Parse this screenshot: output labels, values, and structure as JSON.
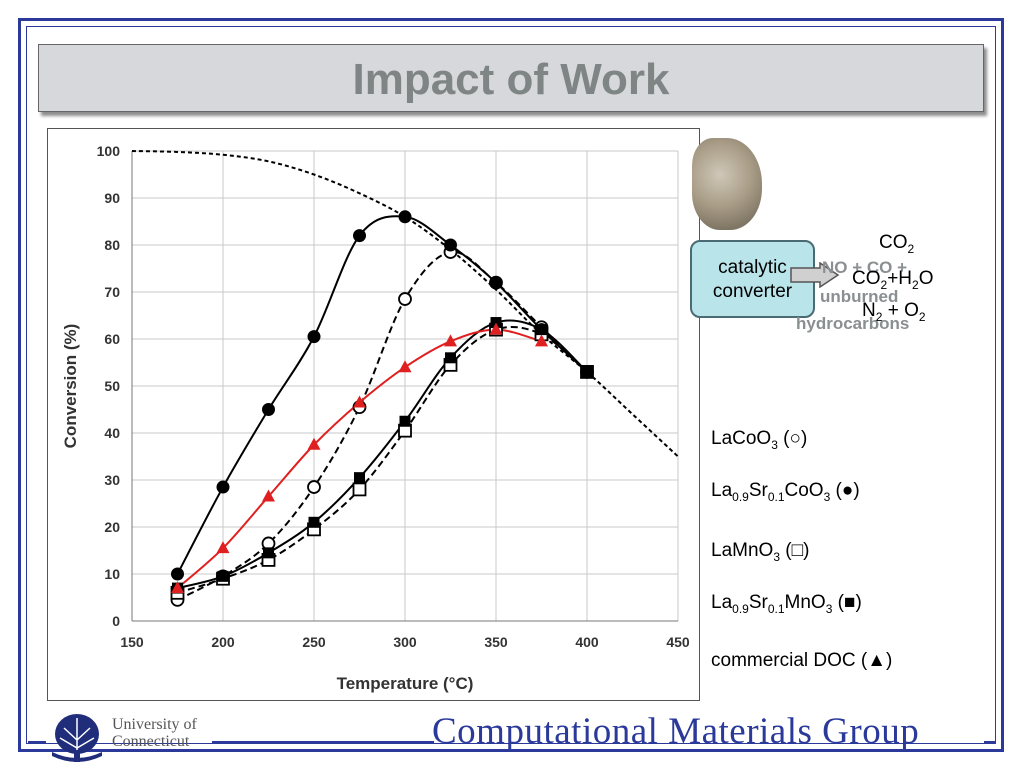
{
  "slide": {
    "title": "Impact of Work",
    "footer_group": "Computational Materials Group",
    "footer_university": "University of\nConnecticut"
  },
  "diagram": {
    "converter_label": "catalytic\nconverter",
    "inputs_overlapped": [
      "NO + CO +",
      "unburned",
      "hydrocarbons"
    ],
    "outputs": [
      "CO2",
      "CO2+H2O",
      "N2 + O2"
    ]
  },
  "colors": {
    "frame": "#2b3a9a",
    "title_bg": "#d6d8db",
    "title_text": "#7f8585",
    "doc_series": "#e02020",
    "converter_fill": "#b8e4ea"
  },
  "chart_data": {
    "type": "line",
    "xlabel": "Temperature (°C)",
    "ylabel": "Conversion (%)",
    "xlim": [
      150,
      450
    ],
    "ylim": [
      0,
      100
    ],
    "xticks": [
      150,
      200,
      250,
      300,
      350,
      400,
      450
    ],
    "yticks": [
      0,
      10,
      20,
      30,
      40,
      50,
      60,
      70,
      80,
      90,
      100
    ],
    "grid": true,
    "legend_position": "right",
    "series": [
      {
        "name": "LaCoO3 (○)",
        "marker": "circle-open",
        "line": "dashed",
        "color": "#000000",
        "x": [
          175,
          200,
          225,
          250,
          275,
          300,
          325,
          350,
          375,
          400
        ],
        "y": [
          4.5,
          9.5,
          16.5,
          28.5,
          45.5,
          68.5,
          78.5,
          72,
          62.5,
          53
        ]
      },
      {
        "name": "La0.9Sr0.1CoO3 (●)",
        "marker": "circle-filled",
        "line": "solid",
        "color": "#000000",
        "x": [
          175,
          200,
          225,
          250,
          275,
          300,
          325,
          350,
          375,
          400
        ],
        "y": [
          10,
          28.5,
          45,
          60.5,
          82,
          86,
          80,
          72,
          62,
          53
        ]
      },
      {
        "name": "LaMnO3 (□)",
        "marker": "square-open",
        "line": "dashed",
        "color": "#000000",
        "x": [
          175,
          200,
          225,
          250,
          275,
          300,
          325,
          350,
          375,
          400
        ],
        "y": [
          6,
          9,
          13,
          19.5,
          28,
          40.5,
          54.5,
          62,
          61,
          53
        ]
      },
      {
        "name": "La0.9Sr0.1MnO3 (■)",
        "marker": "square-filled",
        "line": "solid",
        "color": "#000000",
        "x": [
          175,
          200,
          225,
          250,
          275,
          300,
          325,
          350,
          375,
          400
        ],
        "y": [
          7,
          9.5,
          14.5,
          21,
          30.5,
          42.5,
          56,
          63.5,
          62,
          53
        ]
      },
      {
        "name": "commercial DOC (▲)",
        "marker": "triangle-filled",
        "line": "solid",
        "color": "#e02020",
        "x": [
          175,
          200,
          225,
          250,
          275,
          300,
          325,
          350,
          375
        ],
        "y": [
          7,
          15.5,
          26.5,
          37.5,
          46.5,
          54,
          59.5,
          62,
          59.5
        ]
      },
      {
        "marker": "none",
        "line": "dotted",
        "color": "#000000",
        "x": [
          150,
          175,
          200,
          225,
          250,
          275,
          300,
          325,
          350,
          375,
          400,
          425,
          450
        ],
        "y": [
          100,
          99.8,
          99.2,
          97.8,
          95,
          91,
          86,
          79,
          70.5,
          61,
          53,
          44,
          35
        ]
      }
    ],
    "legend": [
      {
        "label_html": "LaCoO<sub>3</sub> (○)"
      },
      {
        "label_html": "La<sub>0.9</sub>Sr<sub>0.1</sub>CoO<sub>3</sub> (●)"
      },
      {
        "label_html": "LaMnO<sub>3</sub> (□)"
      },
      {
        "label_html": "La<sub>0.9</sub>Sr<sub>0.1</sub>MnO<sub>3</sub> (■)"
      },
      {
        "label_html": "commercial DOC (▲)"
      }
    ]
  }
}
